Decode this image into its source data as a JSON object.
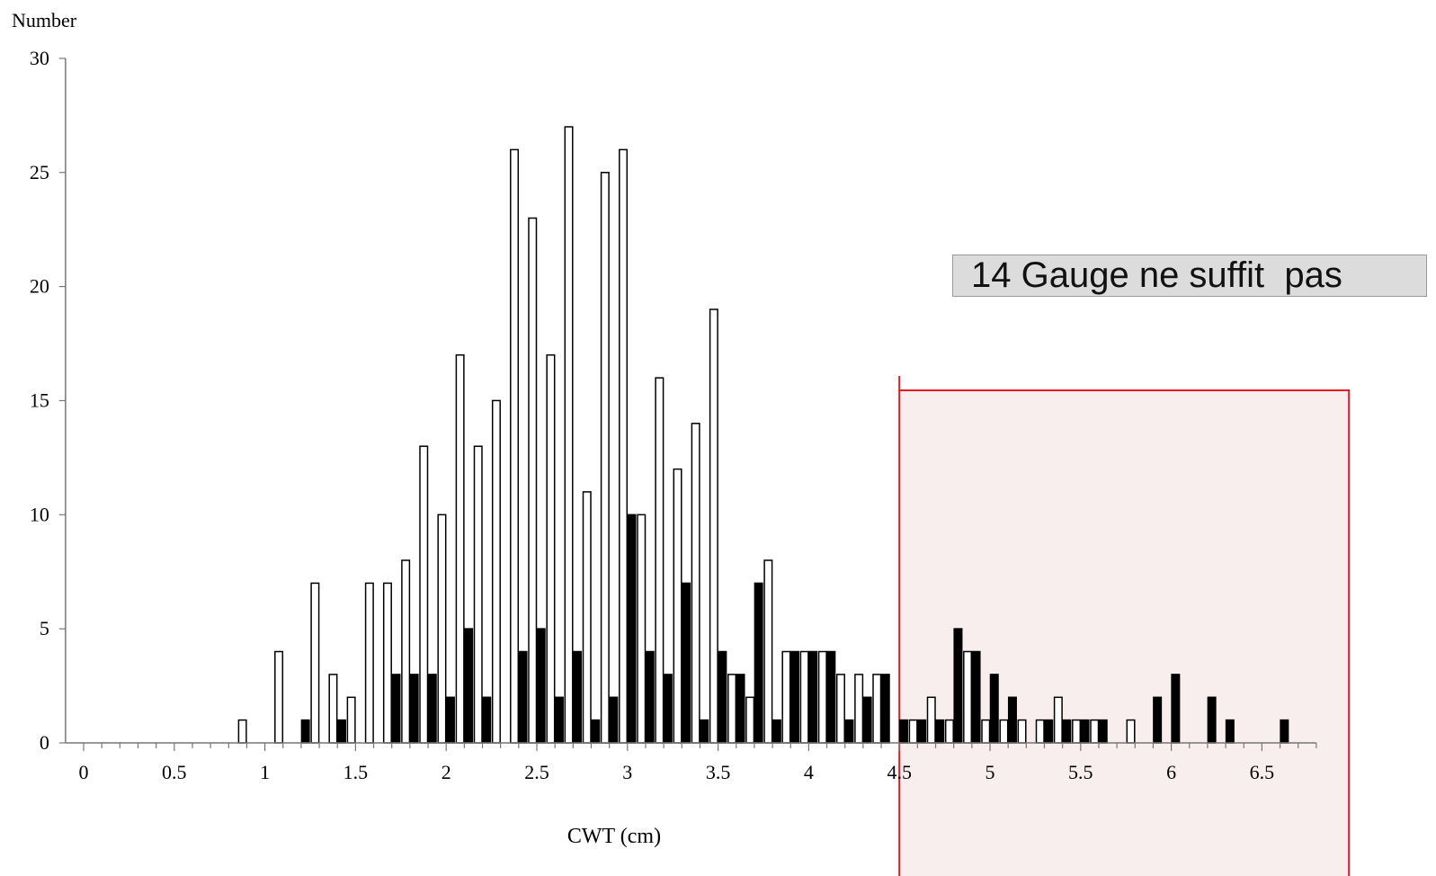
{
  "chart_data": {
    "type": "bar",
    "ylabel": "Number",
    "xlabel": "CWT (cm)",
    "ylim": [
      0,
      30
    ],
    "xlim": [
      -0.1,
      6.8
    ],
    "yticks": [
      "0",
      "5",
      "10",
      "15",
      "20",
      "25",
      "30"
    ],
    "xticks": [
      "0",
      "0.5",
      "1",
      "1.5",
      "2",
      "2.5",
      "3",
      "3.5",
      "4",
      "4.5",
      "5",
      "5.5",
      "6",
      "6.5"
    ],
    "legend": "none",
    "grid": false,
    "series": [
      {
        "color": "#ffffff",
        "x": [
          0.9,
          1.1,
          1.3,
          1.4,
          1.5,
          1.6,
          1.7,
          1.8,
          1.9,
          2.0,
          2.1,
          2.2,
          2.3,
          2.4,
          2.5,
          2.6,
          2.7,
          2.8,
          2.9,
          3.0,
          3.1,
          3.2,
          3.3,
          3.4,
          3.5,
          3.6,
          3.7,
          3.8,
          3.9,
          4.0,
          4.1,
          4.2,
          4.3,
          4.4,
          4.6,
          4.7,
          4.8,
          4.9,
          5.0,
          5.1,
          5.2,
          5.3,
          5.4,
          5.5,
          5.6,
          5.8
        ],
        "values": [
          1,
          4,
          7,
          3,
          2,
          7,
          7,
          8,
          13,
          10,
          17,
          13,
          15,
          26,
          23,
          17,
          27,
          11,
          25,
          26,
          10,
          16,
          12,
          14,
          19,
          3,
          2,
          8,
          4,
          4,
          4,
          3,
          3,
          3,
          1,
          2,
          1,
          4,
          1,
          1,
          1,
          1,
          2,
          1,
          1,
          1
        ]
      },
      {
        "color": "#000000",
        "x": [
          1.2,
          1.4,
          1.7,
          1.8,
          1.9,
          2.0,
          2.1,
          2.2,
          2.4,
          2.5,
          2.6,
          2.7,
          2.8,
          2.9,
          3.0,
          3.1,
          3.2,
          3.3,
          3.4,
          3.5,
          3.6,
          3.7,
          3.8,
          3.9,
          4.0,
          4.1,
          4.2,
          4.3,
          4.4,
          4.5,
          4.6,
          4.7,
          4.8,
          4.9,
          5.0,
          5.1,
          5.3,
          5.4,
          5.5,
          5.6,
          5.9,
          6.0,
          6.2,
          6.3,
          6.6
        ],
        "values": [
          1,
          1,
          3,
          3,
          3,
          2,
          5,
          2,
          4,
          5,
          2,
          4,
          1,
          2,
          10,
          4,
          3,
          7,
          1,
          4,
          3,
          7,
          1,
          4,
          4,
          4,
          1,
          2,
          3,
          1,
          1,
          1,
          5,
          4,
          3,
          2,
          1,
          1,
          1,
          1,
          2,
          3,
          2,
          1,
          1
        ]
      }
    ]
  },
  "annotation": {
    "callout_text": "14 Gauge ne suffit  pas",
    "highlight_x_start": 4.5,
    "highlight_border_color": "#e8191e",
    "highlight_fill_color": "#f8eeee"
  }
}
